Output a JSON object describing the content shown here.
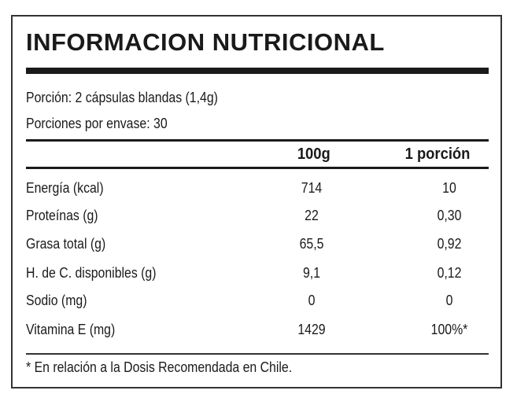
{
  "title": "INFORMACION NUTRICIONAL",
  "serving": "Porción: 2 cápsulas blandas (1,4g)",
  "servings_per_container": "Porciones por envase: 30",
  "columns": [
    "100g",
    "1 porción"
  ],
  "rows": [
    {
      "label": "Energía (kcal)",
      "per100": "714",
      "portion": "10"
    },
    {
      "label": "Proteínas (g)",
      "per100": "22",
      "portion": "0,30"
    },
    {
      "label": "Grasa total (g)",
      "per100": "65,5",
      "portion": "0,92"
    },
    {
      "label": "H. de C. disponibles (g)",
      "per100": "9,1",
      "portion": "0,12"
    },
    {
      "label": "Sodio (mg)",
      "per100": "0",
      "portion": "0"
    },
    {
      "label": "Vitamina E (mg)",
      "per100": "1429",
      "portion": "100%*"
    }
  ],
  "footnote": "* En relación a la Dosis Recomendada en Chile."
}
